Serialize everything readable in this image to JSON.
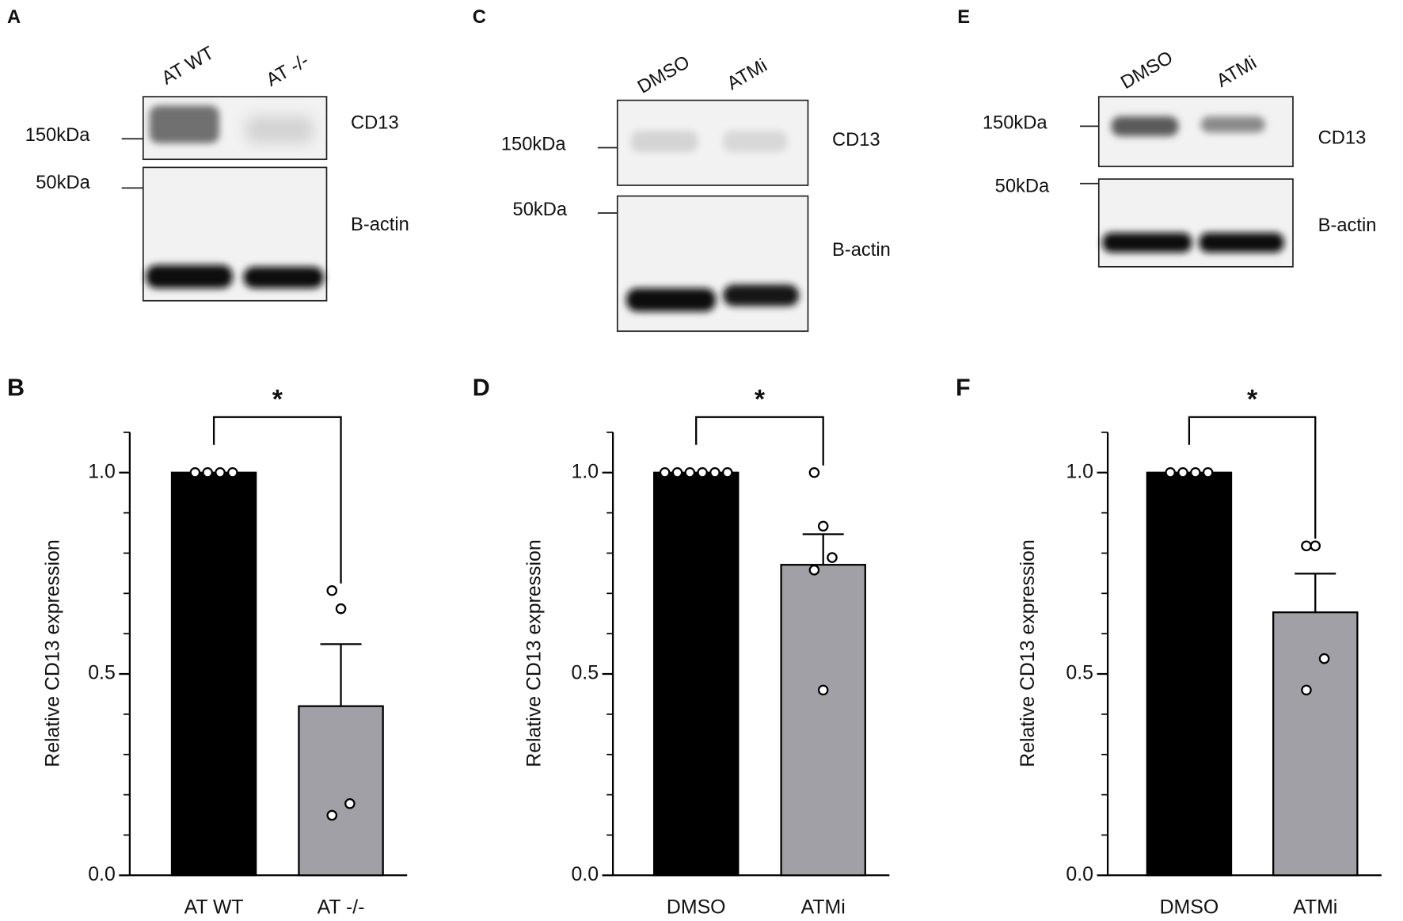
{
  "blots": [
    {
      "panel": "A",
      "lanes": [
        "AT WT",
        "AT -/-"
      ],
      "markers": [
        "150kDa",
        "50kDa"
      ],
      "bands": [
        "CD13",
        "B-actin"
      ]
    },
    {
      "panel": "C",
      "lanes": [
        "DMSO",
        "ATMi"
      ],
      "markers": [
        "150kDa",
        "50kDa"
      ],
      "bands": [
        "CD13",
        "B-actin"
      ]
    },
    {
      "panel": "E",
      "lanes": [
        "DMSO",
        "ATMi"
      ],
      "markers": [
        "150kDa",
        "50kDa"
      ],
      "bands": [
        "CD13",
        "B-actin"
      ]
    }
  ],
  "chart_data": [
    {
      "type": "bar",
      "panel": "B",
      "y_label": "Relative CD13 expression",
      "annotation": "*",
      "categories": [
        "AT WT",
        "AT -/-"
      ],
      "values": [
        1.0,
        0.42
      ],
      "errors": [
        0,
        0.154
      ],
      "points": [
        [
          1,
          1,
          1,
          1
        ],
        [
          0.707,
          0.662,
          0.178,
          0.149
        ]
      ],
      "colors": [
        "#000000",
        "#a0a0a6"
      ],
      "ylim": [
        0,
        1.1
      ],
      "yticks": [
        {
          "value": 0,
          "label": "0.0"
        },
        0.5,
        {
          "value": 1,
          "label": "1.0"
        }
      ],
      "minor_yticks": [
        0.1,
        0.2,
        0.3,
        0.4,
        0.6,
        0.7,
        0.8,
        0.9,
        1.1
      ]
    },
    {
      "type": "bar",
      "panel": "D",
      "y_label": "Relative CD13 expression",
      "annotation": "*",
      "categories": [
        "DMSO",
        "ATMi"
      ],
      "values": [
        1.0,
        0.771
      ],
      "errors": [
        0,
        0.076
      ],
      "points": [
        [
          1,
          1,
          1,
          1,
          1,
          1
        ],
        [
          1.0,
          0.867,
          0.789,
          0.758,
          0.46
        ]
      ],
      "colors": [
        "#000000",
        "#a0a0a6"
      ],
      "ylim": [
        0,
        1.1
      ],
      "yticks": [
        {
          "value": 0,
          "label": "0.0"
        },
        0.5,
        {
          "value": 1,
          "label": "1.0"
        }
      ],
      "minor_yticks": [
        0.1,
        0.2,
        0.3,
        0.4,
        0.6,
        0.7,
        0.8,
        0.9,
        1.1
      ]
    },
    {
      "type": "bar",
      "panel": "F",
      "y_label": "Relative CD13 expression",
      "annotation": "*",
      "categories": [
        "DMSO",
        "ATMi"
      ],
      "values": [
        1.0,
        0.653
      ],
      "errors": [
        0,
        0.096
      ],
      "points": [
        [
          1,
          1,
          1,
          1
        ],
        [
          0.818,
          0.818,
          0.538,
          0.46
        ]
      ],
      "colors": [
        "#000000",
        "#a0a0a6"
      ],
      "ylim": [
        0,
        1.1
      ],
      "yticks": [
        {
          "value": 0,
          "label": "0.0"
        },
        0.5,
        {
          "value": 1,
          "label": "1.0"
        }
      ],
      "minor_yticks": [
        0.1,
        0.2,
        0.3,
        0.4,
        0.6,
        0.7,
        0.8,
        0.9,
        1.1
      ]
    }
  ]
}
